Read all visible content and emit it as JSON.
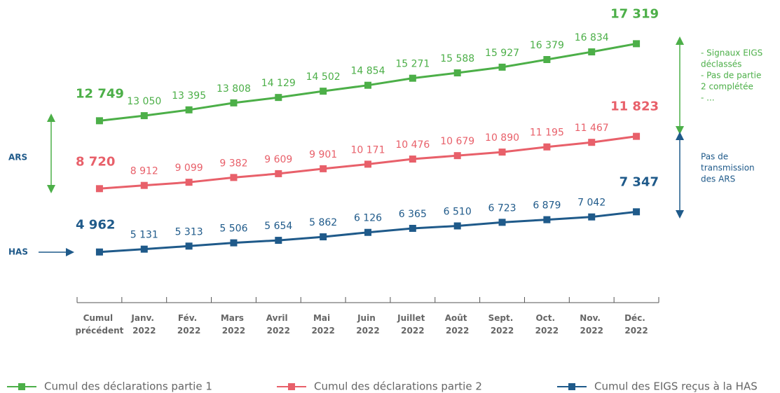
{
  "chart_data": {
    "type": "line",
    "categories": [
      "Cumul précédent",
      "Janv. 2022",
      "Fév. 2022",
      "Mars 2022",
      "Avril 2022",
      "Mai 2022",
      "Juin 2022",
      "Juillet 2022",
      "Août 2022",
      "Sept. 2022",
      "Oct. 2022",
      "Nov. 2022",
      "Déc. 2022"
    ],
    "ylim": [
      2000,
      18000
    ],
    "series": [
      {
        "name": "Cumul des déclarations partie 1",
        "color": "#4caf48",
        "values": [
          12749,
          13050,
          13395,
          13808,
          14129,
          14502,
          14854,
          15271,
          15588,
          15927,
          16379,
          16834,
          17319
        ],
        "value_labels": [
          "12 749",
          "13 050",
          "13 395",
          "13 808",
          "14 129",
          "14 502",
          "14 854",
          "15 271",
          "15 588",
          "15 927",
          "16 379",
          "16 834",
          "17 319"
        ]
      },
      {
        "name": "Cumul des déclarations partie 2",
        "color": "#e8606a",
        "values": [
          8720,
          8912,
          9099,
          9382,
          9609,
          9901,
          10171,
          10476,
          10679,
          10890,
          11195,
          11467,
          11823
        ],
        "value_labels": [
          "8 720",
          "8 912",
          "9 099",
          "9 382",
          "9 609",
          "9 901",
          "10 171",
          "10 476",
          "10 679",
          "10 890",
          "11 195",
          "11 467",
          "11 823"
        ]
      },
      {
        "name": "Cumul des EIGS reçus à la HAS",
        "color": "#1f5a8a",
        "values": [
          4962,
          5131,
          5313,
          5506,
          5654,
          5862,
          6126,
          6365,
          6510,
          6723,
          6879,
          7042,
          7347
        ],
        "value_labels": [
          "4 962",
          "5 131",
          "5 313",
          "5 506",
          "5 654",
          "5 862",
          "6 126",
          "6 365",
          "6 510",
          "6 723",
          "6 879",
          "7 042",
          "7 347"
        ]
      }
    ],
    "annotations": {
      "ars": "ARS",
      "has": "HAS",
      "gap_1": [
        "- Signaux EIGS",
        "déclassés",
        "- Pas de partie",
        "2 complétée",
        "-   ..."
      ],
      "gap_2": [
        "Pas de",
        "transmission",
        "des ARS"
      ]
    }
  }
}
